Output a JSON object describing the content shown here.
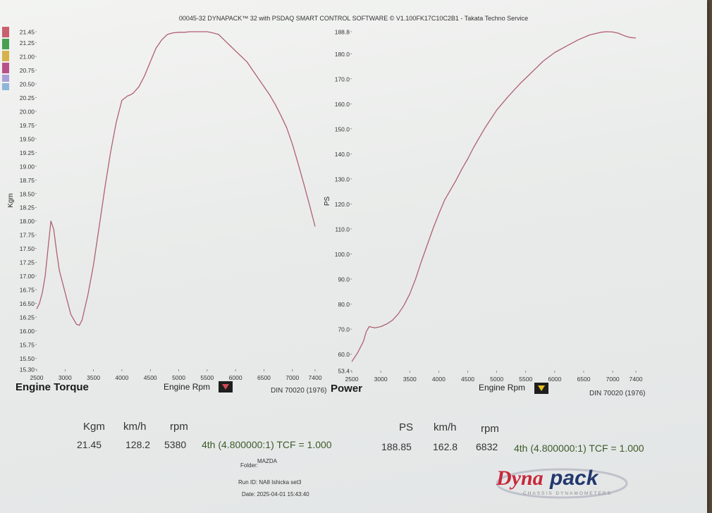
{
  "header": "00045-32 DYNAPACK™ 32 with PSDAQ SMART CONTROL SOFTWARE © V1.100FK17C10C2B1 - Takata Techno Service",
  "legend_swatches": [
    "#c9606e",
    "#4aa051",
    "#d6b24a",
    "#b8508a",
    "#a8a0d8",
    "#8eb6d8"
  ],
  "chart_data": [
    {
      "type": "line",
      "title": "Engine Torque",
      "xlabel": "Engine Rpm",
      "ylabel": "Kgm",
      "note": "DIN 70020 (1976)",
      "xlim": [
        2500,
        7400
      ],
      "ylim": [
        15.3,
        21.45
      ],
      "x_ticks": [
        "2500",
        "3000",
        "3500",
        "4000",
        "4500",
        "5000",
        "5500",
        "6000",
        "6500",
        "7000",
        "7400"
      ],
      "y_ticks": [
        "21.45",
        "21.25",
        "21.00",
        "20.75",
        "20.50",
        "20.25",
        "20.00",
        "19.75",
        "19.50",
        "19.25",
        "19.00",
        "18.75",
        "18.50",
        "18.25",
        "18.00",
        "17.75",
        "17.50",
        "17.25",
        "17.00",
        "16.75",
        "16.50",
        "16.25",
        "16.00",
        "15.75",
        "15.50",
        "15.30"
      ],
      "line_color": "#b06072",
      "marker_color": "#d34a56",
      "series": [
        {
          "x": [
            2500,
            2550,
            2600,
            2650,
            2700,
            2750,
            2800,
            2850,
            2900,
            3000,
            3100,
            3200,
            3250,
            3300,
            3400,
            3500,
            3600,
            3700,
            3800,
            3900,
            4000,
            4100,
            4150,
            4200,
            4300,
            4400,
            4500,
            4600,
            4700,
            4800,
            4900,
            5000,
            5100,
            5200,
            5300,
            5400,
            5500,
            5600,
            5700,
            5800,
            5900,
            6000,
            6100,
            6200,
            6300,
            6400,
            6500,
            6600,
            6700,
            6800,
            6900,
            7000,
            7100,
            7200,
            7300,
            7400
          ],
          "y": [
            16.4,
            16.5,
            16.7,
            17.0,
            17.5,
            18.0,
            17.85,
            17.45,
            17.1,
            16.7,
            16.3,
            16.12,
            16.1,
            16.2,
            16.65,
            17.2,
            17.9,
            18.6,
            19.25,
            19.8,
            20.2,
            20.28,
            20.3,
            20.33,
            20.45,
            20.65,
            20.9,
            21.15,
            21.3,
            21.4,
            21.43,
            21.44,
            21.44,
            21.45,
            21.45,
            21.45,
            21.45,
            21.43,
            21.4,
            21.3,
            21.2,
            21.1,
            21.0,
            20.9,
            20.75,
            20.6,
            20.45,
            20.3,
            20.12,
            19.92,
            19.7,
            19.4,
            19.05,
            18.68,
            18.3,
            17.9
          ]
        }
      ],
      "summary": {
        "headers": [
          "Kgm",
          "km/h",
          "rpm"
        ],
        "values": [
          "21.45",
          "128.2",
          "5380"
        ],
        "gear": "4th (4.800000:1) TCF = 1.000"
      }
    },
    {
      "type": "line",
      "title": "Power",
      "xlabel": "Engine Rpm",
      "ylabel": "PS",
      "note": "DIN 70020 (1976)",
      "xlim": [
        2500,
        7400
      ],
      "ylim": [
        53.4,
        188.8
      ],
      "x_ticks": [
        "2500",
        "3000",
        "3500",
        "4000",
        "4500",
        "5000",
        "5500",
        "6000",
        "6500",
        "7000",
        "7400"
      ],
      "y_ticks": [
        "188.8",
        "180.0",
        "170.0",
        "160.0",
        "150.0",
        "140.0",
        "130.0",
        "120.0",
        "110.0",
        "100.0",
        "90.0",
        "80.0",
        "70.0",
        "60.0",
        "53.4"
      ],
      "line_color": "#b06072",
      "marker_color": "#e6c020",
      "series": [
        {
          "x": [
            2500,
            2600,
            2700,
            2750,
            2800,
            2900,
            3000,
            3100,
            3200,
            3300,
            3400,
            3500,
            3600,
            3700,
            3800,
            3900,
            4000,
            4100,
            4200,
            4300,
            4400,
            4500,
            4600,
            4700,
            4800,
            4900,
            5000,
            5200,
            5400,
            5600,
            5800,
            6000,
            6200,
            6400,
            6600,
            6800,
            6900,
            7000,
            7100,
            7200,
            7300,
            7400
          ],
          "y": [
            57.0,
            60.5,
            65.0,
            69.0,
            71.0,
            70.5,
            71.0,
            72.0,
            73.5,
            76.0,
            79.5,
            84.0,
            90.0,
            97.0,
            103.5,
            110.0,
            116.0,
            121.5,
            125.5,
            129.5,
            134.0,
            138.0,
            142.5,
            146.5,
            150.5,
            154.0,
            157.5,
            163.0,
            168.0,
            172.5,
            177.0,
            180.5,
            183.0,
            185.5,
            187.5,
            188.6,
            188.8,
            188.7,
            188.2,
            187.2,
            186.5,
            186.3
          ]
        }
      ],
      "summary": {
        "headers": [
          "PS",
          "km/h",
          "rpm"
        ],
        "values": [
          "188.85",
          "162.8",
          "6832"
        ],
        "gear": "4th (4.800000:1) TCF = 1.000"
      }
    }
  ],
  "footer": {
    "folder_label": "Folder:",
    "folder_value": "MAZDA",
    "run_id": "Run ID: NA8 Ishicka set3",
    "date": "Date: 2025-04-01 15:43:40"
  },
  "logo": {
    "name": "Dynapack",
    "sub": "CHASSIS DYNAMOMETERS"
  }
}
